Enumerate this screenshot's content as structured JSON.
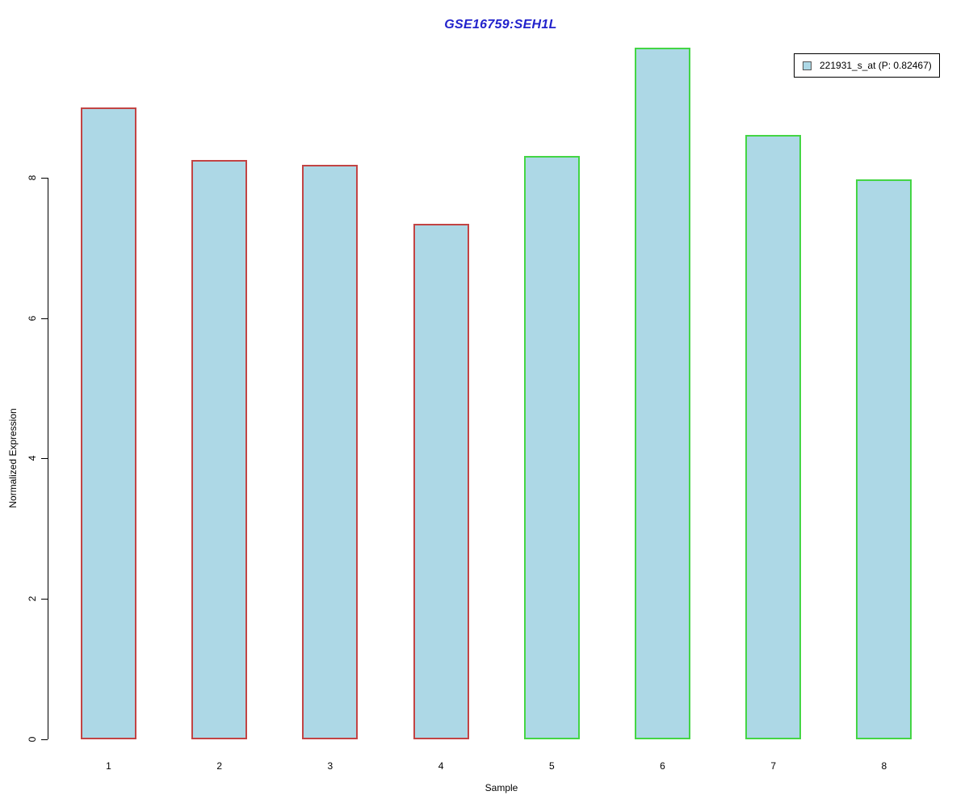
{
  "title": "GSE16759:SEH1L",
  "legend": {
    "label": "221931_s_at (P: 0.82467)"
  },
  "axes": {
    "x_title": "Sample",
    "y_title": "Normalized Expression"
  },
  "colors": {
    "title_color": "#2222CC",
    "bar_fill": "#ADD8E6",
    "group_red_border": "#C24444",
    "group_green_border": "#44D544",
    "axis_color": "#000000"
  },
  "chart_data": {
    "type": "bar",
    "title": "GSE16759:SEH1L",
    "xlabel": "Sample",
    "ylabel": "Normalized Expression",
    "categories": [
      "1",
      "2",
      "3",
      "4",
      "5",
      "6",
      "7",
      "8"
    ],
    "series": [
      {
        "name": "221931_s_at (P: 0.82467)",
        "values": [
          9.0,
          8.25,
          8.18,
          7.34,
          8.31,
          9.85,
          8.61,
          7.98
        ],
        "bar_groups": [
          "red",
          "red",
          "red",
          "red",
          "green",
          "green",
          "green",
          "green"
        ]
      }
    ],
    "yticks": [
      0,
      2,
      4,
      6,
      8
    ],
    "ylim": [
      0,
      10
    ],
    "grid": false,
    "legend_position": "top-right",
    "legend_entries": [
      "221931_s_at (P: 0.82467)"
    ]
  }
}
